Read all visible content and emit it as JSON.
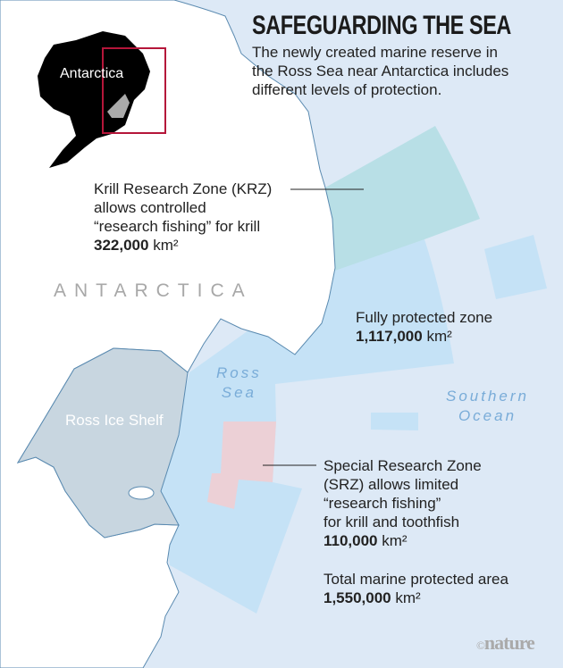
{
  "title": "SAFEGUARDING THE SEA",
  "subtitle": [
    "The newly created marine reserve in",
    "the Ross Sea near Antarctica includes",
    "different levels of protection."
  ],
  "inset": {
    "label": "Antarctica",
    "land_color": "#000000",
    "highlight_box_color": "#b5163a"
  },
  "map_labels": {
    "continent": "ANTARCTICA",
    "ice_shelf": "Ross Ice Shelf",
    "ross_sea": [
      "Ross",
      "Sea"
    ],
    "southern_ocean": [
      "Southern",
      "Ocean"
    ]
  },
  "zones": {
    "krz": {
      "lines": [
        "Krill Research Zone (KRZ)",
        "allows controlled",
        "“research fishing” for krill"
      ],
      "area": "322,000",
      "unit": "km²",
      "color": "#b8dfe6"
    },
    "fully_protected": {
      "lines": [
        "Fully protected zone"
      ],
      "area": "1,117,000",
      "unit": "km²",
      "color": "#c5e2f6"
    },
    "srz": {
      "lines": [
        "Special Research Zone",
        "(SRZ) allows limited",
        "“research fishing”",
        "for krill and toothfish"
      ],
      "area": "110,000",
      "unit": "km²",
      "color": "#ecd0d6"
    },
    "total": {
      "lines": [
        "Total marine protected area"
      ],
      "area": "1,550,000",
      "unit": "km²"
    }
  },
  "colors": {
    "sea": "#dde9f6",
    "ice_shelf": "#c8d6e0",
    "coastline": "#5a8ab0"
  },
  "credit": {
    "symbol": "©",
    "name": "nature"
  }
}
